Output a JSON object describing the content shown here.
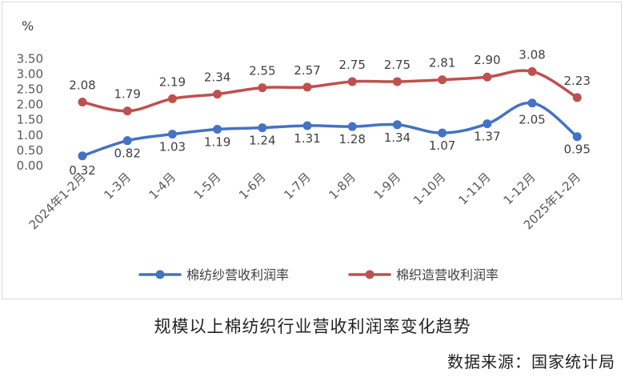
{
  "chart_data": {
    "type": "line",
    "unit_label": "%",
    "categories": [
      "2024年1-2月",
      "1-3月",
      "1-4月",
      "1-5月",
      "1-6月",
      "1-7月",
      "1-8月",
      "1-9月",
      "1-10月",
      "1-11月",
      "1-12月",
      "2025年1-2月"
    ],
    "ylim": [
      0,
      3.5
    ],
    "yticks": [
      "0.00",
      "0.50",
      "1.00",
      "1.50",
      "2.00",
      "2.50",
      "3.00",
      "3.50"
    ],
    "grid": false,
    "legend_position": "bottom",
    "series": [
      {
        "name": "棉纺纱营收利润率",
        "color": "#4472C4",
        "values": [
          0.32,
          0.82,
          1.03,
          1.19,
          1.24,
          1.31,
          1.28,
          1.34,
          1.07,
          1.37,
          2.05,
          0.95
        ],
        "labels": [
          "0.32",
          "0.82",
          "1.03",
          "1.19",
          "1.24",
          "1.31",
          "1.28",
          "1.34",
          "1.07",
          "1.37",
          "2.05",
          "0.95"
        ]
      },
      {
        "name": "棉织造营收利润率",
        "color": "#C0504D",
        "values": [
          2.08,
          1.79,
          2.19,
          2.34,
          2.55,
          2.57,
          2.75,
          2.75,
          2.81,
          2.9,
          3.08,
          2.23
        ],
        "labels": [
          "2.08",
          "1.79",
          "2.19",
          "2.34",
          "2.55",
          "2.57",
          "2.75",
          "2.75",
          "2.81",
          "2.90",
          "3.08",
          "2.23"
        ]
      }
    ]
  },
  "caption": "规模以上棉纺织行业营收利润率变化趋势",
  "source": "数据来源：国家统计局"
}
